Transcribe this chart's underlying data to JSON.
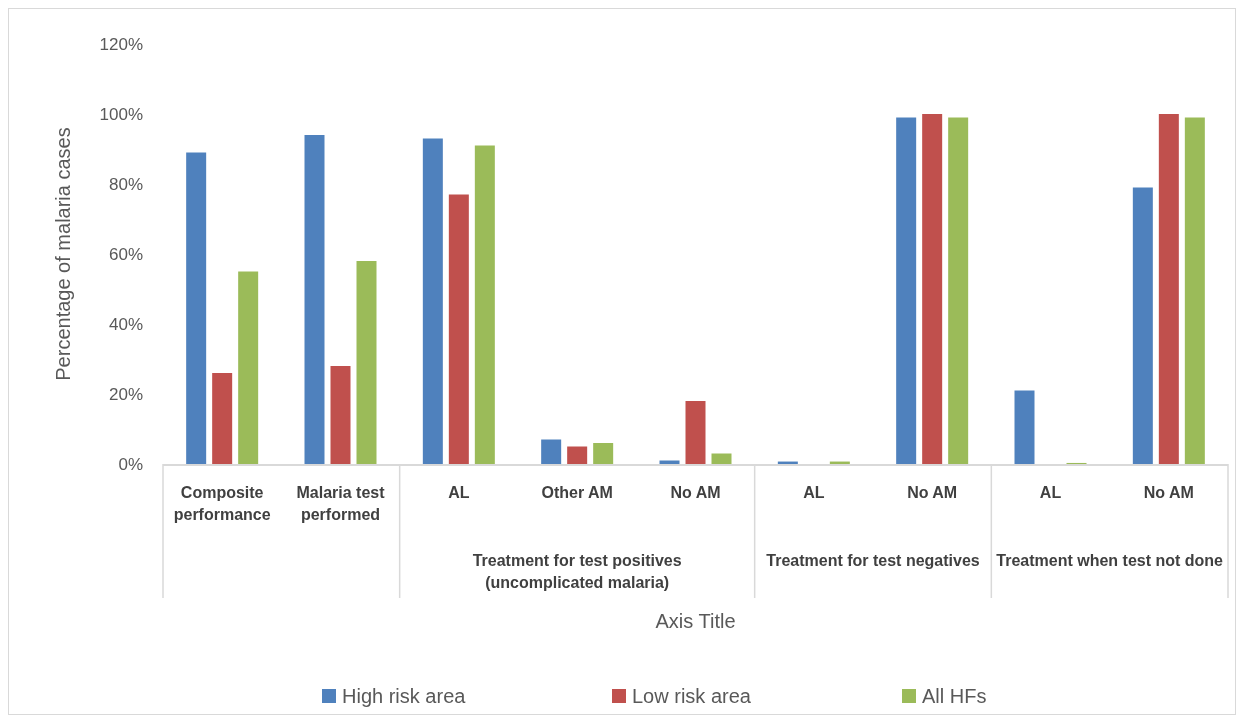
{
  "chart_data": {
    "type": "bar",
    "ylabel": "Percentage of malaria cases",
    "xlabel": "Axis Title",
    "categories": [
      "Composite performance",
      "Malaria test performed",
      "AL",
      "Other AM",
      "No AM",
      "AL",
      "No AM",
      "AL",
      "No AM"
    ],
    "annotations": [
      "Treatment for test positives (uncomplicated malaria)",
      "Treatment for test negatives",
      "Treatment when test not done"
    ],
    "series": [
      {
        "name": "High risk area",
        "color": "#4f81bd",
        "values": [
          89,
          94,
          93,
          7,
          1,
          0.7,
          99,
          21,
          79
        ]
      },
      {
        "name": "Low risk area",
        "color": "#c0504d",
        "values": [
          26,
          28,
          77,
          5,
          18,
          0,
          100,
          0,
          100
        ]
      },
      {
        "name": "All HFs",
        "color": "#9bbb59",
        "values": [
          55,
          58,
          91,
          6,
          3,
          0.7,
          99,
          0.3,
          99
        ]
      }
    ],
    "ylim": [
      0,
      120
    ],
    "yticks": [
      {
        "value": 0,
        "label": "0%"
      },
      {
        "value": 20,
        "label": "20%"
      },
      {
        "value": 40,
        "label": "40%"
      },
      {
        "value": 60,
        "label": "60%"
      },
      {
        "value": 80,
        "label": "80%"
      },
      {
        "value": 100,
        "label": "100%"
      },
      {
        "value": 120,
        "label": "120%"
      }
    ],
    "legend": "bottom"
  }
}
